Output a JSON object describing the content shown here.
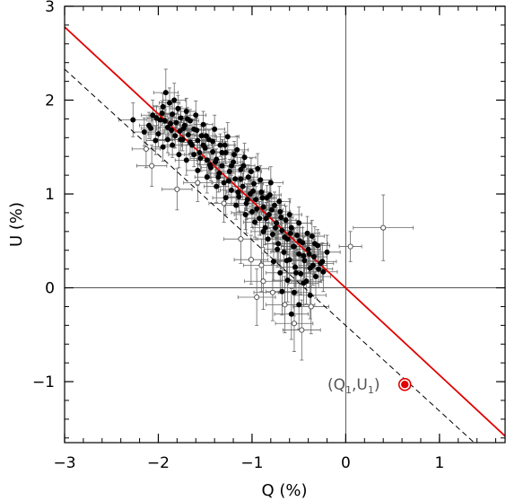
{
  "chart_data": {
    "type": "scatter",
    "xlabel": "Q (%)",
    "ylabel": "U (%)",
    "xlim": [
      -3,
      1.7
    ],
    "ylim": [
      -1.65,
      3
    ],
    "x_ticks": [
      -3,
      -2,
      -1,
      0,
      1
    ],
    "y_ticks": [
      -1,
      0,
      1,
      2,
      3
    ],
    "x_tick_labels": [
      "−3",
      "−2",
      "−1",
      "0",
      "1"
    ],
    "y_tick_labels": [
      "−1",
      "0",
      "1",
      "2",
      "3"
    ],
    "zero_lines": true,
    "fit_lines": [
      {
        "style": "solid",
        "color": "#e00000",
        "points": [
          [
            -3,
            2.78
          ],
          [
            1.7,
            -1.58
          ]
        ]
      },
      {
        "style": "dashed",
        "color": "#000000",
        "points": [
          [
            -3,
            2.33
          ],
          [
            1.37,
            -1.65
          ]
        ]
      }
    ],
    "highlight_point": {
      "x": 0.63,
      "y": -1.03,
      "color": "#e00000",
      "label_main": [
        "(Q",
        ",U",
        ")"
      ],
      "label_sub": "1"
    },
    "points_filled": [
      [
        -2.27,
        1.79,
        0.15,
        0.18
      ],
      [
        -2.15,
        1.66,
        0.12,
        0.15
      ],
      [
        -2.1,
        1.73,
        0.1,
        0.14
      ],
      [
        -2.06,
        1.84,
        0.12,
        0.16
      ],
      [
        -2.03,
        1.57,
        0.1,
        0.15
      ],
      [
        -1.98,
        1.79,
        0.09,
        0.12
      ],
      [
        -1.95,
        1.93,
        0.1,
        0.14
      ],
      [
        -1.92,
        2.08,
        0.13,
        0.25
      ],
      [
        -1.9,
        1.71,
        0.1,
        0.14
      ],
      [
        -1.88,
        1.97,
        0.11,
        0.16
      ],
      [
        -1.85,
        1.85,
        0.09,
        0.12
      ],
      [
        -1.83,
        2.0,
        0.12,
        0.18
      ],
      [
        -1.81,
        1.76,
        0.08,
        0.1
      ],
      [
        -1.79,
        1.91,
        0.09,
        0.14
      ],
      [
        -1.77,
        1.67,
        0.08,
        0.1
      ],
      [
        -1.76,
        1.81,
        0.1,
        0.12
      ],
      [
        -1.74,
        1.58,
        0.09,
        0.12
      ],
      [
        -1.72,
        1.73,
        0.08,
        0.1
      ],
      [
        -1.7,
        1.88,
        0.1,
        0.14
      ],
      [
        -1.68,
        1.63,
        0.08,
        0.1
      ],
      [
        -1.66,
        1.78,
        0.09,
        0.12
      ],
      [
        -1.64,
        1.52,
        0.1,
        0.12
      ],
      [
        -1.62,
        1.69,
        0.08,
        0.1
      ],
      [
        -1.6,
        1.84,
        0.11,
        0.15
      ],
      [
        -1.58,
        1.57,
        0.09,
        0.11
      ],
      [
        -1.56,
        1.44,
        0.1,
        0.13
      ],
      [
        -1.54,
        1.62,
        0.08,
        0.1
      ],
      [
        -1.52,
        1.74,
        0.1,
        0.14
      ],
      [
        -1.5,
        1.49,
        0.09,
        0.11
      ],
      [
        -1.48,
        1.36,
        0.11,
        0.15
      ],
      [
        -1.46,
        1.58,
        0.08,
        0.1
      ],
      [
        -1.44,
        1.28,
        0.1,
        0.14
      ],
      [
        -1.42,
        1.45,
        0.09,
        0.12
      ],
      [
        -1.4,
        1.69,
        0.11,
        0.15
      ],
      [
        -1.38,
        1.37,
        0.09,
        0.11
      ],
      [
        -1.36,
        1.18,
        0.12,
        0.16
      ],
      [
        -1.34,
        1.52,
        0.09,
        0.12
      ],
      [
        -1.32,
        1.3,
        0.1,
        0.13
      ],
      [
        -1.3,
        1.12,
        0.12,
        0.16
      ],
      [
        -1.28,
        1.44,
        0.1,
        0.12
      ],
      [
        -1.26,
        1.61,
        0.12,
        0.15
      ],
      [
        -1.24,
        1.24,
        0.1,
        0.13
      ],
      [
        -1.22,
        1.04,
        0.12,
        0.16
      ],
      [
        -1.2,
        1.34,
        0.1,
        0.12
      ],
      [
        -1.18,
        1.16,
        0.11,
        0.14
      ],
      [
        -1.16,
        1.47,
        0.12,
        0.15
      ],
      [
        -1.14,
        0.97,
        0.12,
        0.16
      ],
      [
        -1.12,
        1.26,
        0.1,
        0.13
      ],
      [
        -1.1,
        1.08,
        0.11,
        0.14
      ],
      [
        -1.08,
        1.39,
        0.12,
        0.15
      ],
      [
        -1.06,
        0.9,
        0.13,
        0.17
      ],
      [
        -1.04,
        1.18,
        0.1,
        0.13
      ],
      [
        -1.02,
        1.0,
        0.11,
        0.14
      ],
      [
        -1.0,
        0.81,
        0.13,
        0.17
      ],
      [
        -0.98,
        1.11,
        0.1,
        0.13
      ],
      [
        -0.96,
        0.94,
        0.11,
        0.14
      ],
      [
        -0.94,
        1.27,
        0.12,
        0.16
      ],
      [
        -0.92,
        0.74,
        0.13,
        0.18
      ],
      [
        -0.9,
        1.02,
        0.1,
        0.13
      ],
      [
        -0.88,
        0.86,
        0.11,
        0.14
      ],
      [
        -0.86,
        0.64,
        0.13,
        0.18
      ],
      [
        -0.84,
        0.96,
        0.1,
        0.13
      ],
      [
        -0.82,
        0.78,
        0.11,
        0.15
      ],
      [
        -0.8,
        1.12,
        0.13,
        0.17
      ],
      [
        -0.78,
        0.57,
        0.13,
        0.18
      ],
      [
        -0.76,
        0.88,
        0.11,
        0.14
      ],
      [
        -0.74,
        0.69,
        0.12,
        0.16
      ],
      [
        -0.72,
        0.47,
        0.14,
        0.2
      ],
      [
        -0.7,
        0.81,
        0.11,
        0.14
      ],
      [
        -0.68,
        0.61,
        0.12,
        0.16
      ],
      [
        -0.66,
        0.38,
        0.14,
        0.2
      ],
      [
        -0.64,
        0.72,
        0.11,
        0.15
      ],
      [
        -0.62,
        0.52,
        0.12,
        0.17
      ],
      [
        -0.6,
        0.3,
        0.15,
        0.21
      ],
      [
        -0.58,
        0.64,
        0.12,
        0.15
      ],
      [
        -0.56,
        0.44,
        0.13,
        0.18
      ],
      [
        -0.54,
        0.22,
        0.15,
        0.22
      ],
      [
        -0.52,
        0.56,
        0.12,
        0.16
      ],
      [
        -0.5,
        0.36,
        0.13,
        0.18
      ],
      [
        -0.48,
        0.15,
        0.15,
        0.22
      ],
      [
        -0.46,
        0.48,
        0.12,
        0.16
      ],
      [
        -0.44,
        0.29,
        0.14,
        0.19
      ],
      [
        -0.42,
        0.07,
        0.16,
        0.24
      ],
      [
        -0.4,
        0.41,
        0.13,
        0.17
      ],
      [
        -0.38,
        0.21,
        0.14,
        0.2
      ],
      [
        -0.36,
        0.55,
        0.13,
        0.17
      ],
      [
        -0.34,
        0.33,
        0.14,
        0.19
      ],
      [
        -0.32,
        0.12,
        0.16,
        0.23
      ],
      [
        -0.3,
        0.45,
        0.13,
        0.17
      ],
      [
        -0.27,
        0.26,
        0.14,
        0.2
      ],
      [
        -0.24,
        0.17,
        0.15,
        0.21
      ],
      [
        -0.2,
        0.38,
        0.14,
        0.18
      ],
      [
        -1.85,
        1.52,
        0.1,
        0.13
      ],
      [
        -1.78,
        1.42,
        0.11,
        0.14
      ],
      [
        -1.7,
        1.36,
        0.12,
        0.16
      ],
      [
        -1.58,
        1.25,
        0.12,
        0.16
      ],
      [
        -1.48,
        1.18,
        0.13,
        0.17
      ],
      [
        -1.38,
        1.08,
        0.13,
        0.17
      ],
      [
        -1.28,
        0.96,
        0.14,
        0.18
      ],
      [
        -1.9,
        1.58,
        0.11,
        0.14
      ],
      [
        -2.0,
        1.64,
        0.11,
        0.14
      ],
      [
        -1.95,
        1.5,
        0.12,
        0.15
      ],
      [
        -1.82,
        1.62,
        0.1,
        0.13
      ],
      [
        -1.73,
        1.7,
        0.09,
        0.11
      ],
      [
        -1.66,
        1.55,
        0.1,
        0.12
      ],
      [
        -1.55,
        1.38,
        0.11,
        0.14
      ],
      [
        -1.45,
        1.31,
        0.11,
        0.14
      ],
      [
        -1.35,
        1.22,
        0.12,
        0.15
      ],
      [
        -1.25,
        1.14,
        0.12,
        0.15
      ],
      [
        -1.15,
        1.02,
        0.12,
        0.16
      ],
      [
        -1.05,
        0.94,
        0.12,
        0.16
      ],
      [
        -0.95,
        0.84,
        0.13,
        0.17
      ],
      [
        -0.85,
        0.74,
        0.13,
        0.17
      ],
      [
        -0.75,
        0.64,
        0.13,
        0.18
      ],
      [
        -0.65,
        0.54,
        0.14,
        0.19
      ],
      [
        -0.55,
        0.44,
        0.14,
        0.19
      ],
      [
        -0.45,
        0.34,
        0.15,
        0.2
      ],
      [
        -0.35,
        0.24,
        0.15,
        0.21
      ],
      [
        -0.83,
        0.52,
        0.13,
        0.18
      ],
      [
        -0.73,
        0.41,
        0.14,
        0.19
      ],
      [
        -0.63,
        0.29,
        0.15,
        0.21
      ],
      [
        -0.53,
        0.16,
        0.16,
        0.22
      ],
      [
        -0.62,
        0.08,
        0.16,
        0.23
      ],
      [
        -0.55,
        -0.05,
        0.17,
        0.25
      ],
      [
        -0.7,
        0.16,
        0.15,
        0.22
      ],
      [
        -0.77,
        0.28,
        0.14,
        0.2
      ],
      [
        -0.88,
        0.6,
        0.13,
        0.17
      ],
      [
        -0.97,
        0.7,
        0.12,
        0.16
      ],
      [
        -1.07,
        0.78,
        0.12,
        0.16
      ],
      [
        -1.17,
        0.88,
        0.12,
        0.15
      ],
      [
        -1.01,
        1.24,
        0.11,
        0.14
      ],
      [
        -0.91,
        1.15,
        0.12,
        0.15
      ],
      [
        -0.81,
        0.99,
        0.12,
        0.16
      ],
      [
        -0.71,
        0.92,
        0.12,
        0.16
      ],
      [
        -0.6,
        0.78,
        0.13,
        0.17
      ],
      [
        -0.5,
        0.69,
        0.13,
        0.17
      ],
      [
        -0.41,
        0.58,
        0.13,
        0.18
      ],
      [
        -0.33,
        0.47,
        0.14,
        0.18
      ],
      [
        -0.25,
        0.28,
        0.15,
        0.2
      ],
      [
        -0.45,
        0.05,
        0.16,
        0.23
      ],
      [
        -0.38,
        -0.08,
        0.17,
        0.25
      ],
      [
        -0.5,
        -0.18,
        0.17,
        0.26
      ],
      [
        -0.58,
        -0.28,
        0.18,
        0.27
      ],
      [
        -0.68,
        -0.04,
        0.17,
        0.25
      ],
      [
        -1.62,
        1.42,
        0.1,
        0.13
      ],
      [
        -1.52,
        1.52,
        0.1,
        0.13
      ],
      [
        -1.42,
        1.56,
        0.11,
        0.14
      ],
      [
        -1.32,
        1.44,
        0.11,
        0.14
      ],
      [
        -1.22,
        1.3,
        0.11,
        0.14
      ],
      [
        -1.12,
        1.16,
        0.11,
        0.15
      ],
      [
        -1.87,
        1.75,
        0.09,
        0.11
      ],
      [
        -2.08,
        1.7,
        0.1,
        0.13
      ],
      [
        -1.96,
        1.86,
        0.1,
        0.13
      ],
      [
        -1.86,
        1.68,
        0.09,
        0.11
      ],
      [
        -1.76,
        1.58,
        0.09,
        0.12
      ],
      [
        -1.69,
        1.8,
        0.1,
        0.12
      ],
      [
        -1.59,
        1.68,
        0.1,
        0.13
      ],
      [
        -1.49,
        1.62,
        0.1,
        0.13
      ],
      [
        -1.39,
        1.34,
        0.11,
        0.14
      ],
      [
        -1.29,
        1.52,
        0.11,
        0.14
      ],
      [
        -1.19,
        1.42,
        0.11,
        0.14
      ],
      [
        -1.09,
        1.3,
        0.12,
        0.15
      ],
      [
        -0.99,
        1.03,
        0.12,
        0.15
      ],
      [
        -0.89,
        0.96,
        0.12,
        0.16
      ],
      [
        -0.79,
        0.83,
        0.12,
        0.16
      ],
      [
        -0.69,
        0.75,
        0.13,
        0.17
      ],
      [
        -0.59,
        0.58,
        0.13,
        0.17
      ],
      [
        -0.49,
        0.5,
        0.13,
        0.18
      ],
      [
        -0.39,
        0.36,
        0.14,
        0.19
      ],
      [
        -0.29,
        0.2,
        0.15,
        0.2
      ],
      [
        -1.93,
        1.78,
        0.1,
        0.12
      ],
      [
        -2.02,
        1.81,
        0.1,
        0.13
      ]
    ],
    "points_open": [
      [
        -2.13,
        1.48,
        0.15,
        0.2
      ],
      [
        -2.07,
        1.3,
        0.16,
        0.22
      ],
      [
        -1.8,
        1.05,
        0.16,
        0.22
      ],
      [
        -1.58,
        1.12,
        0.15,
        0.2
      ],
      [
        -1.12,
        0.52,
        0.18,
        0.26
      ],
      [
        -1.06,
        0.8,
        0.16,
        0.22
      ],
      [
        -0.9,
        0.24,
        0.19,
        0.28
      ],
      [
        -0.88,
        0.07,
        0.2,
        0.3
      ],
      [
        -0.78,
        -0.05,
        0.2,
        0.3
      ],
      [
        -0.65,
        -0.18,
        0.2,
        0.3
      ],
      [
        -0.47,
        -0.45,
        0.2,
        0.32
      ],
      [
        -0.37,
        -0.2,
        0.19,
        0.29
      ],
      [
        -0.55,
        -0.38,
        0.2,
        0.3
      ],
      [
        -1.01,
        0.3,
        0.18,
        0.26
      ],
      [
        0.05,
        0.44,
        0.12,
        0.16
      ],
      [
        0.4,
        0.64,
        0.32,
        0.35
      ],
      [
        -1.3,
        0.9,
        0.16,
        0.2
      ],
      [
        -0.95,
        -0.1,
        0.2,
        0.3
      ]
    ]
  }
}
